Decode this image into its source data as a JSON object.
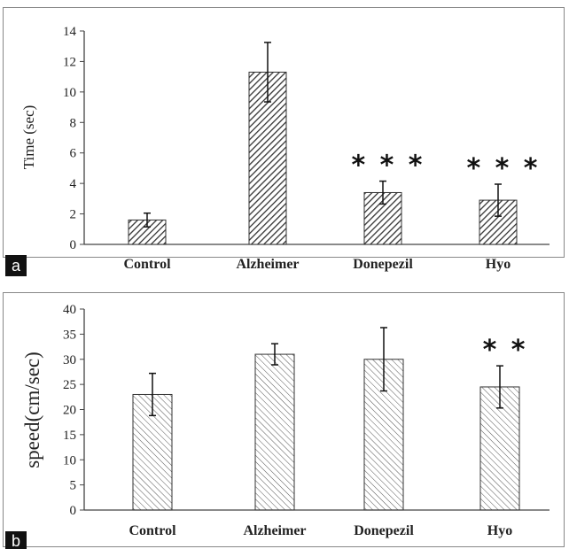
{
  "chart_data": [
    {
      "panel": "a",
      "type": "bar",
      "categories": [
        "Control",
        "Alzheimer",
        "Donepezil",
        "Hyo"
      ],
      "values": [
        1.6,
        11.3,
        3.4,
        2.9
      ],
      "errors": [
        0.45,
        1.95,
        0.75,
        1.05
      ],
      "significance": [
        "",
        "",
        "***",
        "***"
      ],
      "ylabel": "Time (sec)",
      "ylim": [
        0,
        14
      ],
      "yticks": [
        0,
        2,
        4,
        6,
        8,
        10,
        12,
        14
      ],
      "grid": false
    },
    {
      "panel": "b",
      "type": "bar",
      "categories": [
        "Control",
        "Alzheimer",
        "Donepezil",
        "Hyo"
      ],
      "values": [
        23,
        31,
        30,
        24.5
      ],
      "errors": [
        4.2,
        2.1,
        6.3,
        4.2
      ],
      "significance": [
        "",
        "",
        "",
        "**"
      ],
      "ylabel": "speed(cm/sec)",
      "ylim": [
        0,
        40
      ],
      "yticks": [
        0,
        5,
        10,
        15,
        20,
        25,
        30,
        35,
        40
      ],
      "grid": false
    }
  ],
  "colors": {
    "bar_hatch": "#333333",
    "bar_fill": "#ffffff",
    "axis": "#444444",
    "frame": "#888888",
    "label_box": "#111111"
  }
}
